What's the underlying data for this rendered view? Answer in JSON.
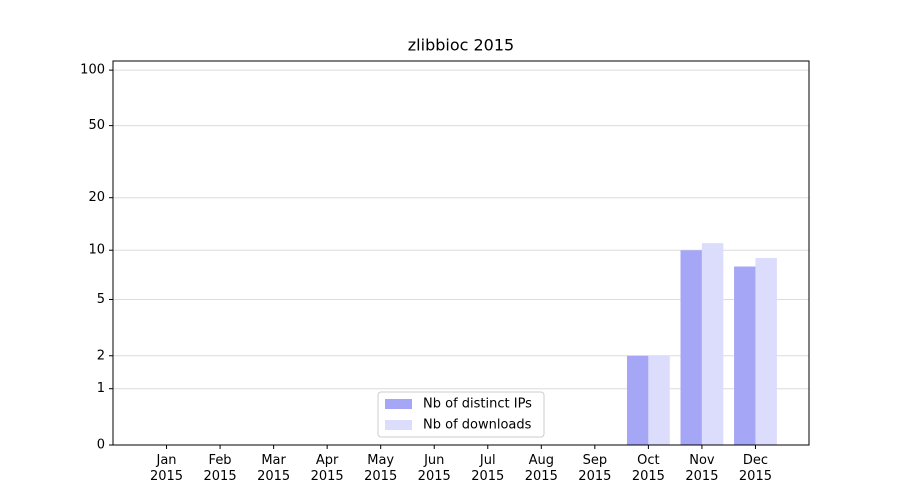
{
  "chart_data": {
    "type": "bar",
    "title": "zlibbioc 2015",
    "categories": [
      "Jan 2015",
      "Feb 2015",
      "Mar 2015",
      "Apr 2015",
      "May 2015",
      "Jun 2015",
      "Jul 2015",
      "Aug 2015",
      "Sep 2015",
      "Oct 2015",
      "Nov 2015",
      "Dec 2015"
    ],
    "series": [
      {
        "name": "Nb of distinct IPs",
        "color": "#a6a6f7",
        "values": [
          0,
          0,
          0,
          0,
          0,
          0,
          0,
          0,
          0,
          2,
          10,
          8
        ]
      },
      {
        "name": "Nb of downloads",
        "color": "#dcdcfc",
        "values": [
          0,
          0,
          0,
          0,
          0,
          0,
          0,
          0,
          0,
          2,
          11,
          9
        ]
      }
    ],
    "yscale": "symlog",
    "ylim": [
      0,
      112
    ],
    "yticks": [
      0,
      1,
      2,
      5,
      10,
      20,
      50,
      100
    ],
    "grid": true,
    "legend": "lower center"
  }
}
